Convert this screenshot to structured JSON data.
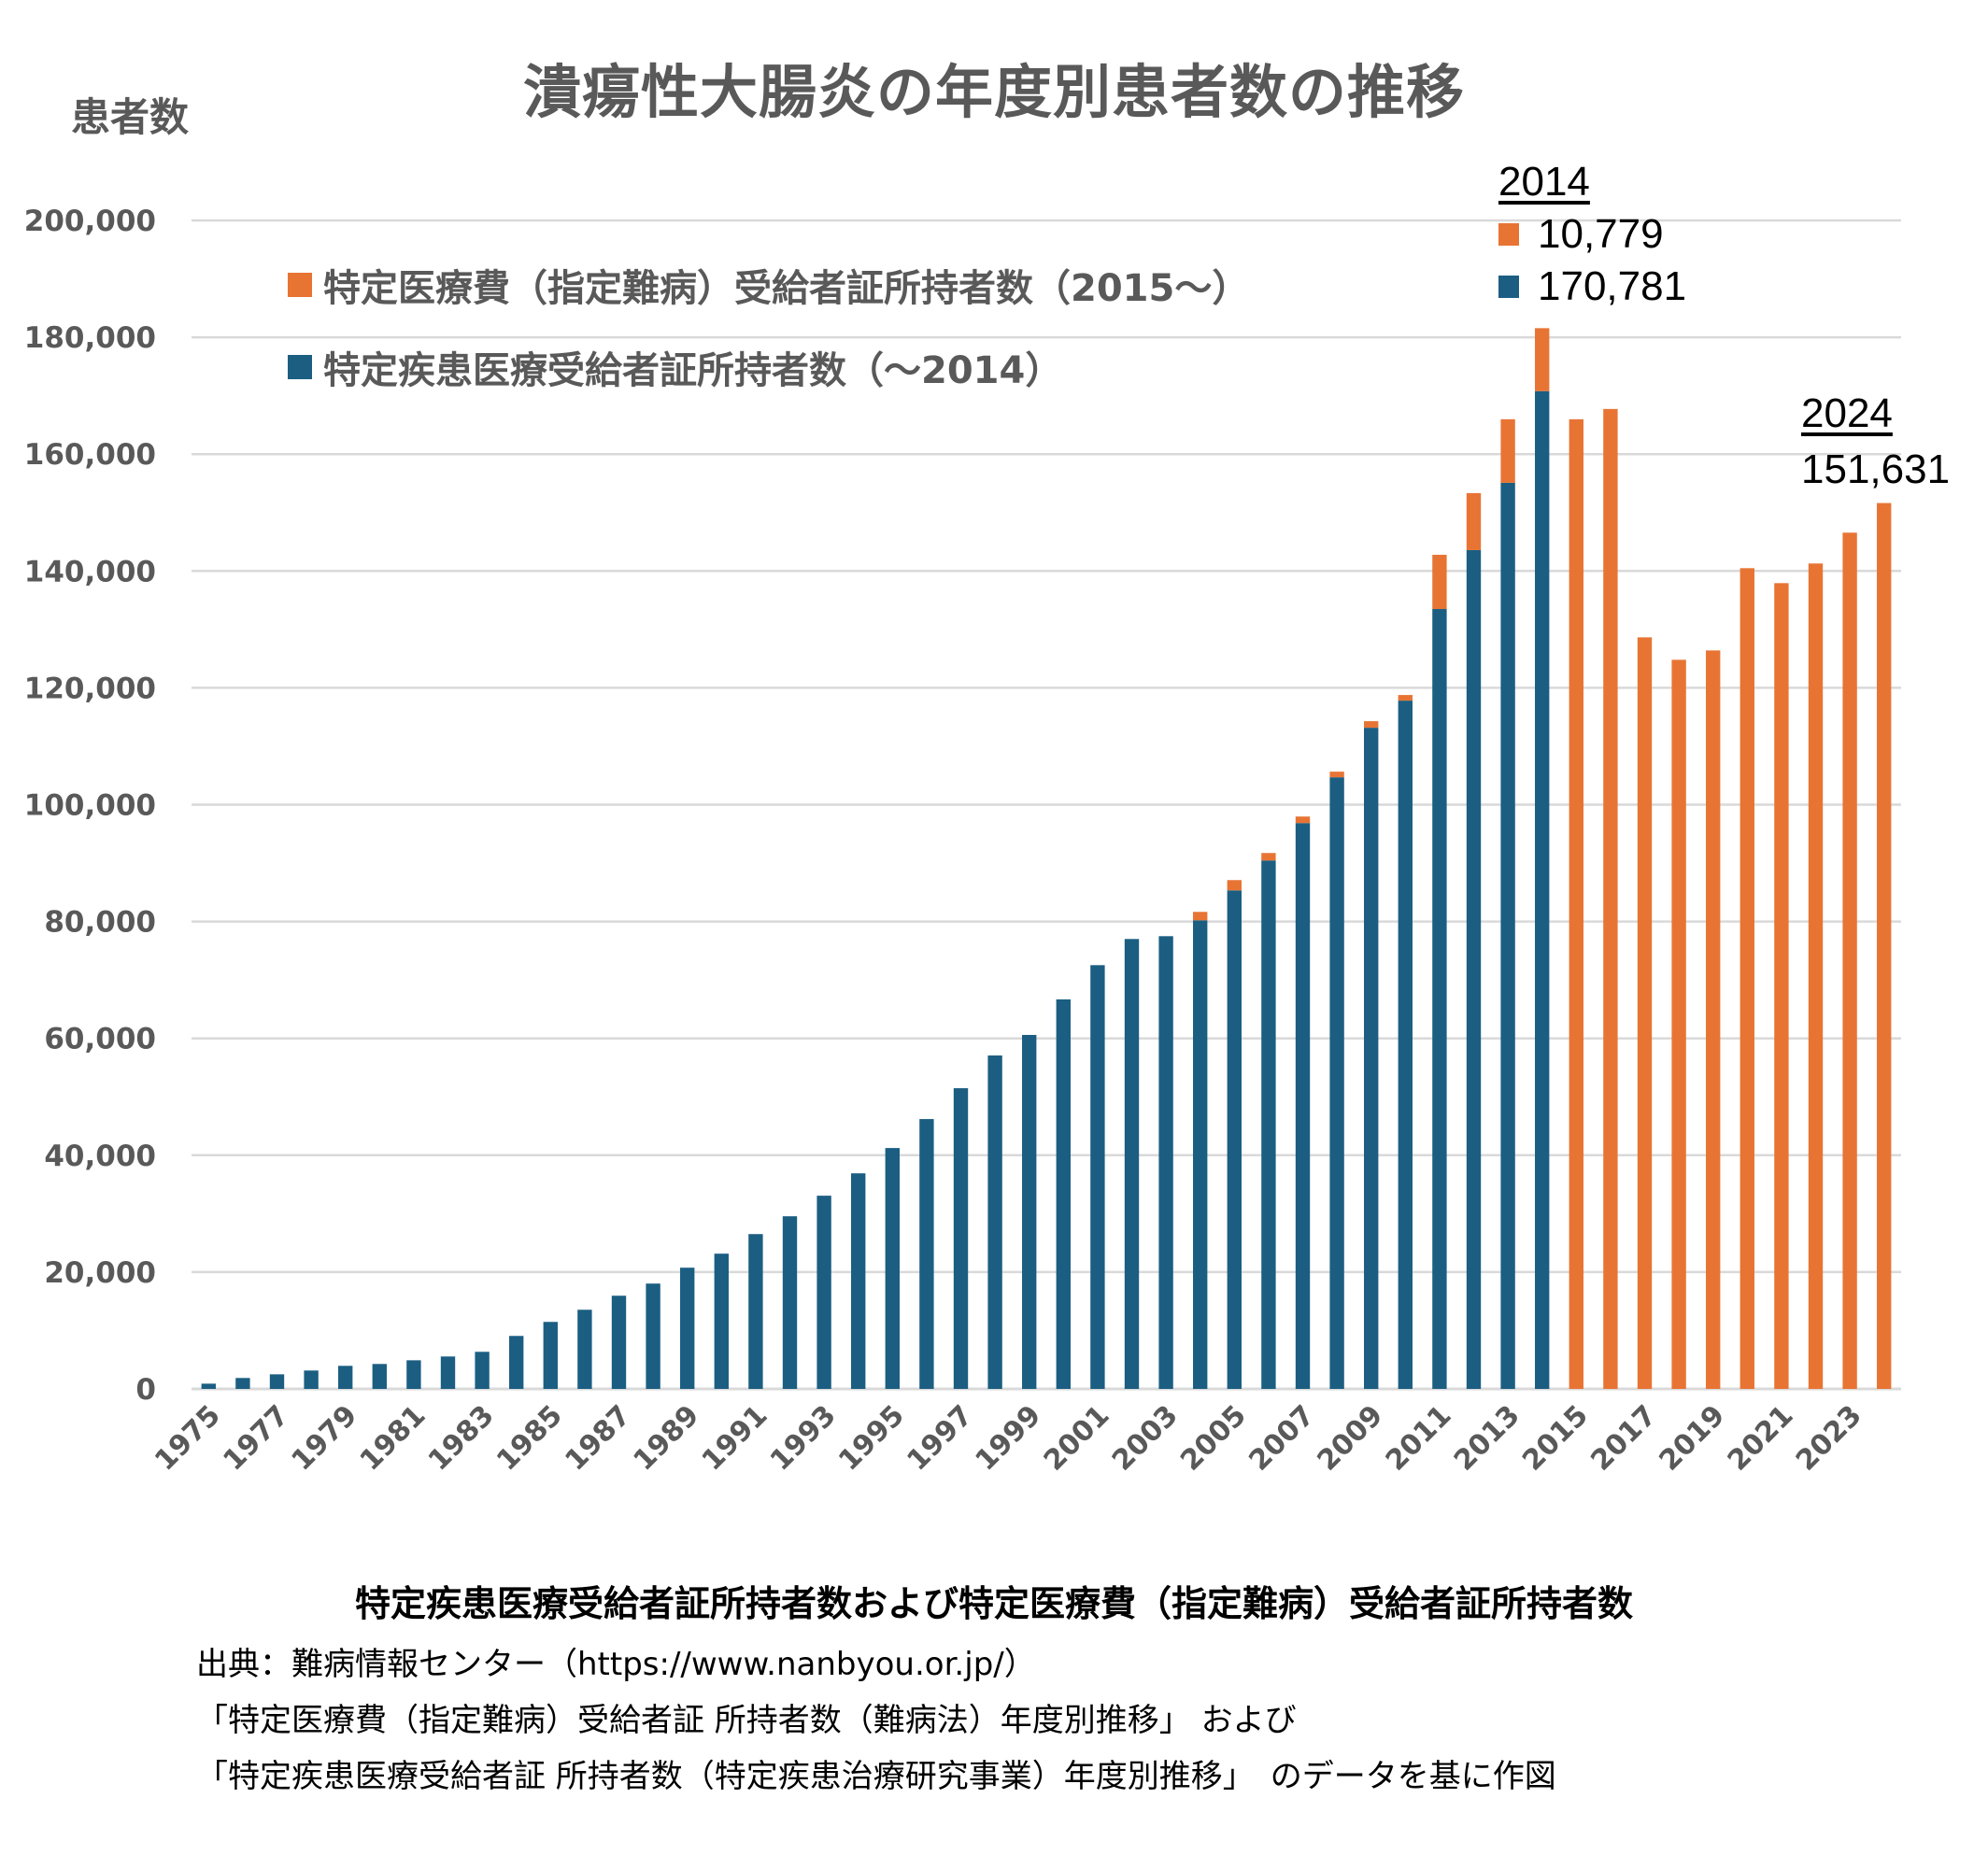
{
  "title": "潰瘍性大腸炎の年度別患者数の推移",
  "y_axis_title": "患者数",
  "colors": {
    "orange": "#E87434",
    "blue": "#1B5E82",
    "grid": "#D9D9D9",
    "text": "#595959"
  },
  "legend": [
    {
      "label": "特定医療費（指定難病）受給者証所持者数（2015〜）",
      "color": "#E87434"
    },
    {
      "label": "特定疾患医療受給者証所持者数（〜2014）",
      "color": "#1B5E82"
    }
  ],
  "annotations": {
    "a2014": {
      "year": "2014",
      "orange_value": "10,779",
      "blue_value": "170,781"
    },
    "a2024": {
      "year": "2024",
      "value": "151,631"
    }
  },
  "footer": {
    "title": "特定疾患医療受給者証所持者数および特定医療費（指定難病）受給者証所持者数",
    "source_lines": [
      "出典：難病情報センター（https://www.nanbyou.or.jp/）",
      "「特定医療費（指定難病）受給者証 所持者数（難病法）年度別推移」 および",
      "「特定疾患医療受給者証 所持者数（特定疾患治療研究事業）年度別推移」　のデータを基に作図"
    ]
  },
  "chart_data": {
    "type": "bar",
    "stacked": true,
    "title": "潰瘍性大腸炎の年度別患者数の推移",
    "xlabel": "",
    "ylabel": "患者数",
    "ylim": [
      0,
      200000
    ],
    "yticks": [
      0,
      20000,
      40000,
      60000,
      80000,
      100000,
      120000,
      140000,
      160000,
      180000,
      200000
    ],
    "ytick_labels": [
      "0",
      "20,000",
      "40,000",
      "60,000",
      "80,000",
      "100,000",
      "120,000",
      "140,000",
      "160,000",
      "180,000",
      "200,000"
    ],
    "grid": true,
    "legend_position": "top-left",
    "categories": [
      1975,
      1976,
      1977,
      1978,
      1979,
      1980,
      1981,
      1982,
      1983,
      1984,
      1985,
      1986,
      1987,
      1988,
      1989,
      1990,
      1991,
      1992,
      1993,
      1994,
      1995,
      1996,
      1997,
      1998,
      1999,
      2000,
      2001,
      2002,
      2003,
      2004,
      2005,
      2006,
      2007,
      2008,
      2009,
      2010,
      2011,
      2012,
      2013,
      2014,
      2015,
      2016,
      2017,
      2018,
      2019,
      2020,
      2021,
      2022,
      2023,
      2024
    ],
    "xtick_labels": [
      "1975",
      "1977",
      "1979",
      "1981",
      "1983",
      "1985",
      "1987",
      "1989",
      "1991",
      "1993",
      "1995",
      "1997",
      "1999",
      "2001",
      "2003",
      "2005",
      "2007",
      "2009",
      "2011",
      "2013",
      "2015",
      "2017",
      "2019",
      "2021",
      "2023"
    ],
    "series": [
      {
        "name": "特定疾患医療受給者証所持者数（〜2014）",
        "color": "#1B5E82",
        "values": [
          900,
          1870,
          2500,
          3150,
          3950,
          4270,
          4900,
          5550,
          6350,
          9070,
          11470,
          13550,
          15950,
          18030,
          20750,
          23150,
          26500,
          29550,
          33070,
          36900,
          41230,
          46190,
          51470,
          57070,
          60590,
          66670,
          72530,
          77010,
          77490,
          80210,
          85330,
          90450,
          96850,
          104690,
          113170,
          117810,
          133490,
          143570,
          155090,
          170781,
          0,
          0,
          0,
          0,
          0,
          0,
          0,
          0,
          0,
          0
        ]
      },
      {
        "name": "特定医療費（指定難病）受給者証所持者数（2015〜）",
        "color": "#E87434",
        "values": [
          0,
          0,
          0,
          0,
          0,
          0,
          0,
          0,
          0,
          0,
          0,
          0,
          0,
          0,
          0,
          0,
          0,
          0,
          0,
          0,
          0,
          0,
          0,
          0,
          0,
          0,
          0,
          0,
          0,
          1440,
          1760,
          1280,
          1120,
          960,
          1120,
          960,
          9280,
          9760,
          10880,
          10779,
          165970,
          167730,
          128640,
          124800,
          126400,
          140480,
          137920,
          141280,
          146560,
          151631
        ]
      }
    ]
  }
}
